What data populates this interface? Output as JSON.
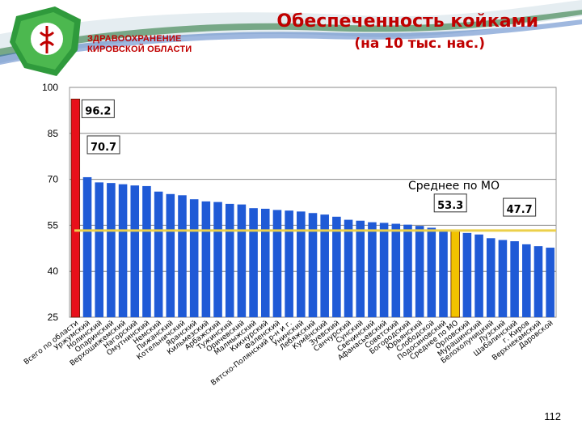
{
  "header": {
    "title": "Обеспеченность койками",
    "subtitle": "(на 10 тыс. нас.)",
    "logo_text": "ЗДРАВООХРАНЕНИЕ КИРОВСКОЙ ОБЛАСТИ"
  },
  "page_number": "112",
  "colors": {
    "bar": "#1f5ad6",
    "highlight_first": "#e8101a",
    "highlight_avg": "#f2c200",
    "average_line": "#ecd04a",
    "title": "#c00000"
  },
  "chart_data": {
    "type": "bar",
    "title": "Обеспеченность койками",
    "ylim": [
      25,
      100
    ],
    "yticks": [
      25,
      40,
      55,
      70,
      85,
      100
    ],
    "grid": true,
    "categories": [
      "Всего по области",
      "Уржумский",
      "Нолинский",
      "Опаринский",
      "Верхошижемский",
      "Нагорский",
      "Омутнинский",
      "Немский",
      "Пижанский",
      "Котельничский",
      "Яранский",
      "Кильмезский",
      "Арбажский",
      "Тужинский",
      "Оричевский",
      "Малмыжский",
      "Кикнурский",
      "Фаленский",
      "Вятско-Полянский р-н и г.",
      "Унинский",
      "Лебяжский",
      "Кумёнский",
      "Зуевский",
      "Санчурский",
      "Сунский",
      "Свечинский",
      "Афанасьевский",
      "Советский",
      "Богородский",
      "Юрьянский",
      "Слободской",
      "Подосиновский",
      "Среднее по МО",
      "Орловский",
      "Мурашинский",
      "Белохолуницкий",
      "Лузский",
      "Шабалинский",
      "г. Киров",
      "Верхнекамский",
      "Даровской"
    ],
    "values": [
      96.2,
      70.7,
      69.0,
      68.8,
      68.4,
      68.0,
      67.8,
      66.0,
      65.2,
      64.8,
      63.5,
      62.8,
      62.6,
      62.0,
      61.8,
      60.6,
      60.4,
      60.0,
      59.8,
      59.5,
      59.0,
      58.5,
      57.8,
      56.8,
      56.5,
      56.0,
      55.8,
      55.5,
      55.2,
      54.8,
      54.2,
      53.5,
      53.3,
      52.5,
      52.0,
      50.8,
      50.2,
      49.8,
      48.8,
      48.2,
      47.7
    ],
    "highlight": {
      "first": 0,
      "average": 32
    },
    "average_value": 53.3,
    "average_label": "Среднее по МО",
    "data_labels": [
      {
        "text": "96.2",
        "index": 0
      },
      {
        "text": "70.7",
        "index": 1
      },
      {
        "text": "53.3",
        "index": 32
      },
      {
        "text": "47.7",
        "index": 40
      }
    ]
  }
}
